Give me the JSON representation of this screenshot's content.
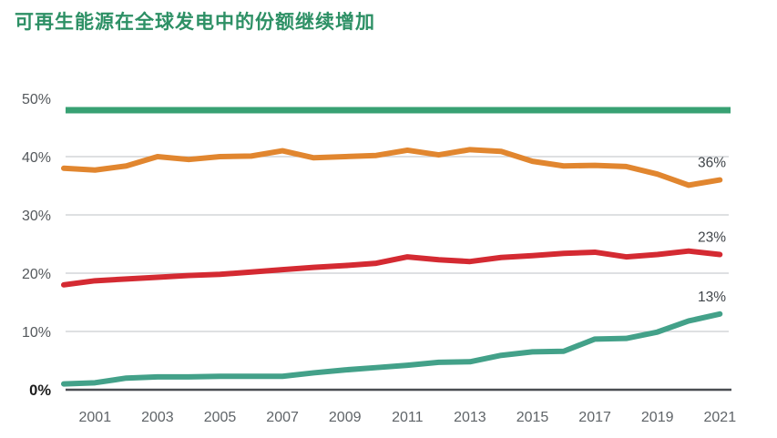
{
  "title": "可再生能源在全球发电中的份额继续增加",
  "colors": {
    "title": "#2d9065",
    "top_rule": "#38a173",
    "grid": "#c9cdd1",
    "zero_axis": "#4b4e52",
    "y_tick_label": "#54585c",
    "y_tick_label_zero": "#1c1c1c",
    "x_tick_label": "#5f6468",
    "end_label": "#3f4449",
    "orange": "#e1862f",
    "red": "#d42a32",
    "teal": "#43a189"
  },
  "chart_data": {
    "type": "line",
    "title": "可再生能源在全球发电中的份额继续增加",
    "x": [
      2000,
      2001,
      2002,
      2003,
      2004,
      2005,
      2006,
      2007,
      2008,
      2009,
      2010,
      2011,
      2012,
      2013,
      2014,
      2015,
      2016,
      2017,
      2018,
      2019,
      2020,
      2021
    ],
    "series": [
      {
        "name": "orange-line",
        "color_key": "orange",
        "end_label": "36%",
        "values": [
          38.0,
          37.7,
          38.4,
          40.0,
          39.5,
          40.0,
          40.1,
          41.0,
          39.8,
          40.0,
          40.2,
          41.1,
          40.3,
          41.2,
          40.9,
          39.2,
          38.4,
          38.5,
          38.3,
          37.0,
          35.1,
          36.0
        ]
      },
      {
        "name": "red-line",
        "color_key": "red",
        "end_label": "23%",
        "values": [
          18.0,
          18.7,
          19.0,
          19.3,
          19.6,
          19.8,
          20.2,
          20.6,
          21.0,
          21.3,
          21.7,
          22.8,
          22.3,
          22.0,
          22.7,
          23.0,
          23.4,
          23.6,
          22.8,
          23.2,
          23.8,
          23.2
        ]
      },
      {
        "name": "teal-line",
        "color_key": "teal",
        "end_label": "13%",
        "values": [
          1.0,
          1.2,
          2.0,
          2.2,
          2.2,
          2.3,
          2.3,
          2.3,
          2.9,
          3.4,
          3.8,
          4.2,
          4.7,
          4.8,
          5.9,
          6.5,
          6.6,
          8.7,
          8.8,
          9.9,
          11.8,
          13.0
        ]
      }
    ],
    "ylim": [
      0,
      50
    ],
    "yticks": [
      0,
      10,
      20,
      30,
      40,
      50
    ],
    "ytick_labels": [
      "0%",
      "10%",
      "20%",
      "30%",
      "40%",
      "50%"
    ],
    "xticks": [
      2001,
      2003,
      2005,
      2007,
      2009,
      2011,
      2013,
      2015,
      2017,
      2019,
      2021
    ],
    "xtick_labels": [
      "2001",
      "2003",
      "2005",
      "2007",
      "2009",
      "2011",
      "2013",
      "2015",
      "2017",
      "2019",
      "2021"
    ],
    "legend": "none",
    "grid": "horizontal",
    "end_labels": true
  }
}
